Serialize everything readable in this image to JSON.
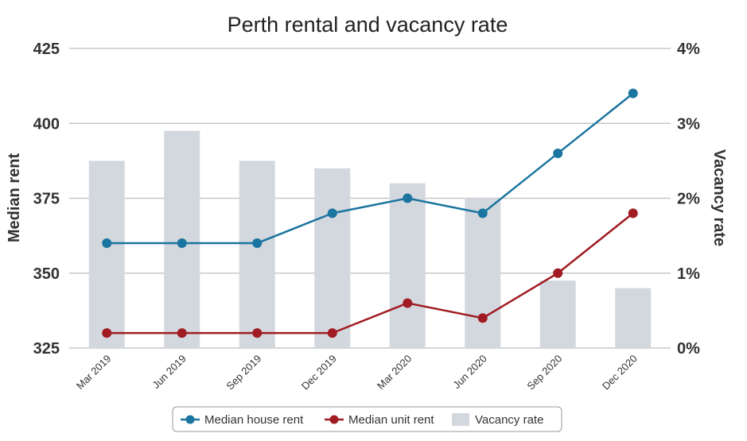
{
  "chart_data": {
    "type": "bar+line",
    "title": "Perth rental and vacancy rate",
    "categories": [
      "Mar 2019",
      "Jun 2019",
      "Sep 2019",
      "Dec 2019",
      "Mar 2020",
      "Jun 2020",
      "Sep 2020",
      "Dec 2020"
    ],
    "ylabel_left": "Median rent",
    "ylabel_right": "Vacancy rate",
    "ylim_left": [
      325,
      425
    ],
    "yticks_left": [
      "325",
      "350",
      "375",
      "400",
      "425"
    ],
    "ylim_right": [
      0,
      4
    ],
    "yticks_right": [
      "0%",
      "1%",
      "2%",
      "3%",
      "4%"
    ],
    "grid": true,
    "legend_position": "bottom-center",
    "series": [
      {
        "name": "Median house rent",
        "type": "line",
        "axis": "left",
        "color": "#1a75a0",
        "values": [
          360,
          360,
          360,
          370,
          375,
          370,
          390,
          410
        ]
      },
      {
        "name": "Median unit rent",
        "type": "line",
        "axis": "left",
        "color": "#a01c22",
        "values": [
          330,
          330,
          330,
          330,
          340,
          335,
          350,
          370
        ]
      },
      {
        "name": "Vacancy rate",
        "type": "bar",
        "axis": "right",
        "unit": "%",
        "color": "#d3d7de",
        "values": [
          2.5,
          2.9,
          2.5,
          2.4,
          2.2,
          2.0,
          0.9,
          0.8
        ]
      }
    ]
  }
}
